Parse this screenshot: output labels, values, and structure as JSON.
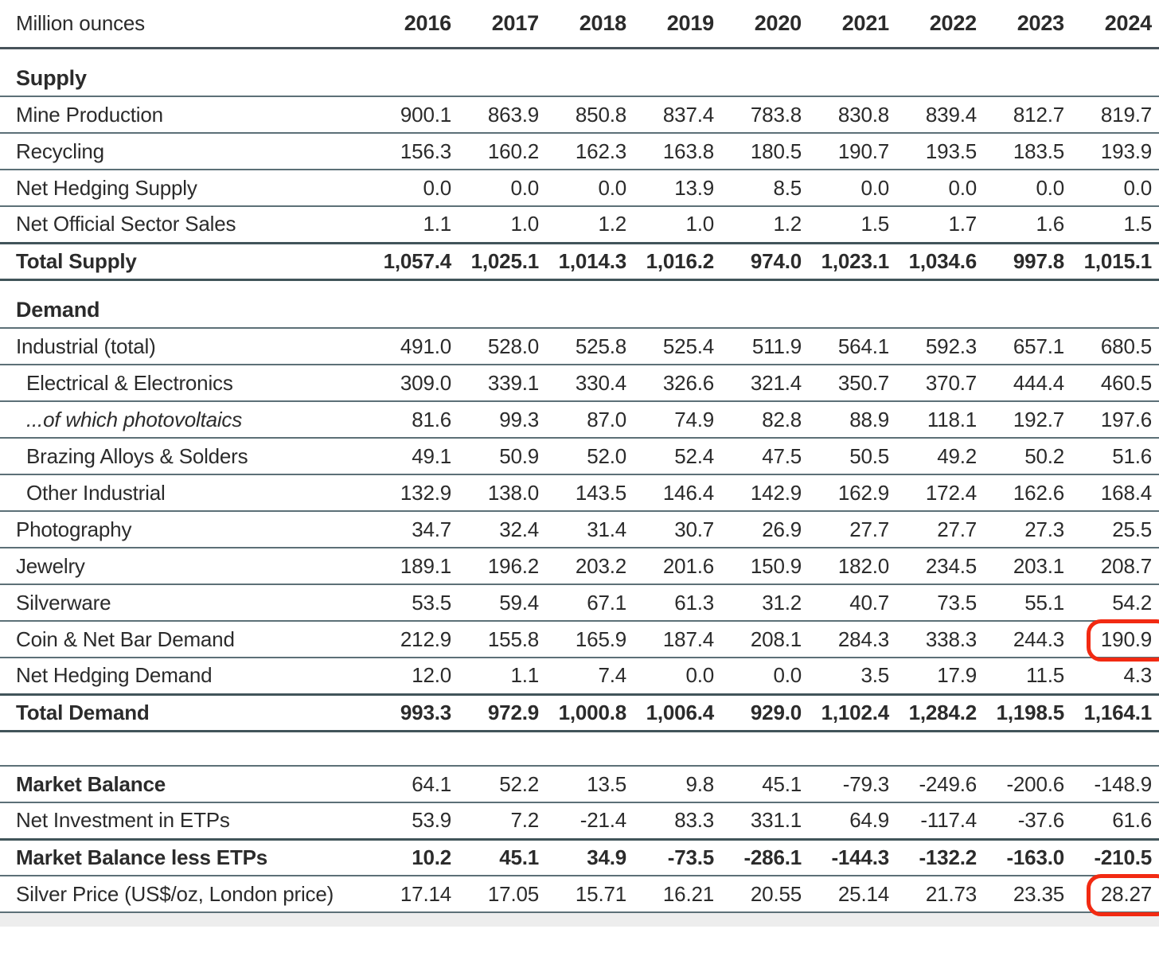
{
  "title": "Silver supply and demand table",
  "unit_label": "Million ounces",
  "years": [
    "2016",
    "2017",
    "2018",
    "2019",
    "2020",
    "2021",
    "2022",
    "2023",
    "2024"
  ],
  "colors": {
    "red_annotation": "#f22a12",
    "rule": "#5c7077",
    "rule_strong": "#41545a",
    "rule_header": "#48535a",
    "footer_strip": "#ededed",
    "text": "#2b2b2b"
  },
  "sections": [
    {
      "heading": "Supply",
      "rows": [
        {
          "label": "Mine Production",
          "values": [
            "900.1",
            "863.9",
            "850.8",
            "837.4",
            "783.8",
            "830.8",
            "839.4",
            "812.7",
            "819.7"
          ]
        },
        {
          "label": "Recycling",
          "values": [
            "156.3",
            "160.2",
            "162.3",
            "163.8",
            "180.5",
            "190.7",
            "193.5",
            "183.5",
            "193.9"
          ]
        },
        {
          "label": "Net Hedging Supply",
          "values": [
            "0.0",
            "0.0",
            "0.0",
            "13.9",
            "8.5",
            "0.0",
            "0.0",
            "0.0",
            "0.0"
          ]
        },
        {
          "label": "Net Official Sector Sales",
          "values": [
            "1.1",
            "1.0",
            "1.2",
            "1.0",
            "1.2",
            "1.5",
            "1.7",
            "1.6",
            "1.5"
          ],
          "border_bottom": "strong"
        },
        {
          "label": "Total Supply",
          "values": [
            "1,057.4",
            "1,025.1",
            "1,014.3",
            "1,016.2",
            "974.0",
            "1,023.1",
            "1,034.6",
            "997.8",
            "1,015.1"
          ],
          "bold_row": true,
          "border_bottom": "strong"
        }
      ]
    },
    {
      "heading": "Demand",
      "rows": [
        {
          "label": "Industrial (total)",
          "values": [
            "491.0",
            "528.0",
            "525.8",
            "525.4",
            "511.9",
            "564.1",
            "592.3",
            "657.1",
            "680.5"
          ]
        },
        {
          "label": "Electrical & Electronics",
          "indent": true,
          "values": [
            "309.0",
            "339.1",
            "330.4",
            "326.6",
            "321.4",
            "350.7",
            "370.7",
            "444.4",
            "460.5"
          ]
        },
        {
          "label": "...of which photovoltaics",
          "indent": true,
          "italic": true,
          "values": [
            "81.6",
            "99.3",
            "87.0",
            "74.9",
            "82.8",
            "88.9",
            "118.1",
            "192.7",
            "197.6"
          ]
        },
        {
          "label": "Brazing Alloys & Solders",
          "indent": true,
          "values": [
            "49.1",
            "50.9",
            "52.0",
            "52.4",
            "47.5",
            "50.5",
            "49.2",
            "50.2",
            "51.6"
          ]
        },
        {
          "label": "Other Industrial",
          "indent": true,
          "values": [
            "132.9",
            "138.0",
            "143.5",
            "146.4",
            "142.9",
            "162.9",
            "172.4",
            "162.6",
            "168.4"
          ]
        },
        {
          "label": "Photography",
          "values": [
            "34.7",
            "32.4",
            "31.4",
            "30.7",
            "26.9",
            "27.7",
            "27.7",
            "27.3",
            "25.5"
          ]
        },
        {
          "label": "Jewelry",
          "values": [
            "189.1",
            "196.2",
            "203.2",
            "201.6",
            "150.9",
            "182.0",
            "234.5",
            "203.1",
            "208.7"
          ]
        },
        {
          "label": "Silverware",
          "values": [
            "53.5",
            "59.4",
            "67.1",
            "61.3",
            "31.2",
            "40.7",
            "73.5",
            "55.1",
            "54.2"
          ]
        },
        {
          "label": "Coin & Net Bar Demand",
          "values": [
            "212.9",
            "155.8",
            "165.9",
            "187.4",
            "208.1",
            "284.3",
            "338.3",
            "244.3",
            "190.9"
          ],
          "circled_col": 8
        },
        {
          "label": "Net Hedging Demand",
          "values": [
            "12.0",
            "1.1",
            "7.4",
            "0.0",
            "0.0",
            "3.5",
            "17.9",
            "11.5",
            "4.3"
          ],
          "border_bottom": "strong"
        },
        {
          "label": "Total Demand",
          "values": [
            "993.3",
            "972.9",
            "1,000.8",
            "1,006.4",
            "929.0",
            "1,102.4",
            "1,284.2",
            "1,198.5",
            "1,164.1"
          ],
          "bold_row": true,
          "border_bottom": "strong"
        }
      ]
    },
    {
      "heading": null,
      "spacer_before": true,
      "rows": [
        {
          "label": "Market Balance",
          "bold_label": true,
          "values": [
            "64.1",
            "52.2",
            "13.5",
            "9.8",
            "45.1",
            "-79.3",
            "-249.6",
            "-200.6",
            "-148.9"
          ]
        },
        {
          "label": "Net Investment in ETPs",
          "values": [
            "53.9",
            "7.2",
            "-21.4",
            "83.3",
            "331.1",
            "64.9",
            "-117.4",
            "-37.6",
            "61.6"
          ],
          "border_bottom": "strong"
        },
        {
          "label": "Market Balance less ETPs",
          "values": [
            "10.2",
            "45.1",
            "34.9",
            "-73.5",
            "-286.1",
            "-144.3",
            "-132.2",
            "-163.0",
            "-210.5"
          ],
          "bold_row": true
        },
        {
          "label": "Silver Price (US$/oz, London price)",
          "values": [
            "17.14",
            "17.05",
            "15.71",
            "16.21",
            "20.55",
            "25.14",
            "21.73",
            "23.35",
            "28.27"
          ],
          "circled_col": 8
        }
      ]
    }
  ],
  "annotations": {
    "circled_cells": [
      {
        "row": "Coin & Net Bar Demand",
        "year": "2024",
        "value": "190.9"
      },
      {
        "row": "Silver Price (US$/oz, London price)",
        "year": "2024",
        "value": "28.27"
      }
    ]
  }
}
